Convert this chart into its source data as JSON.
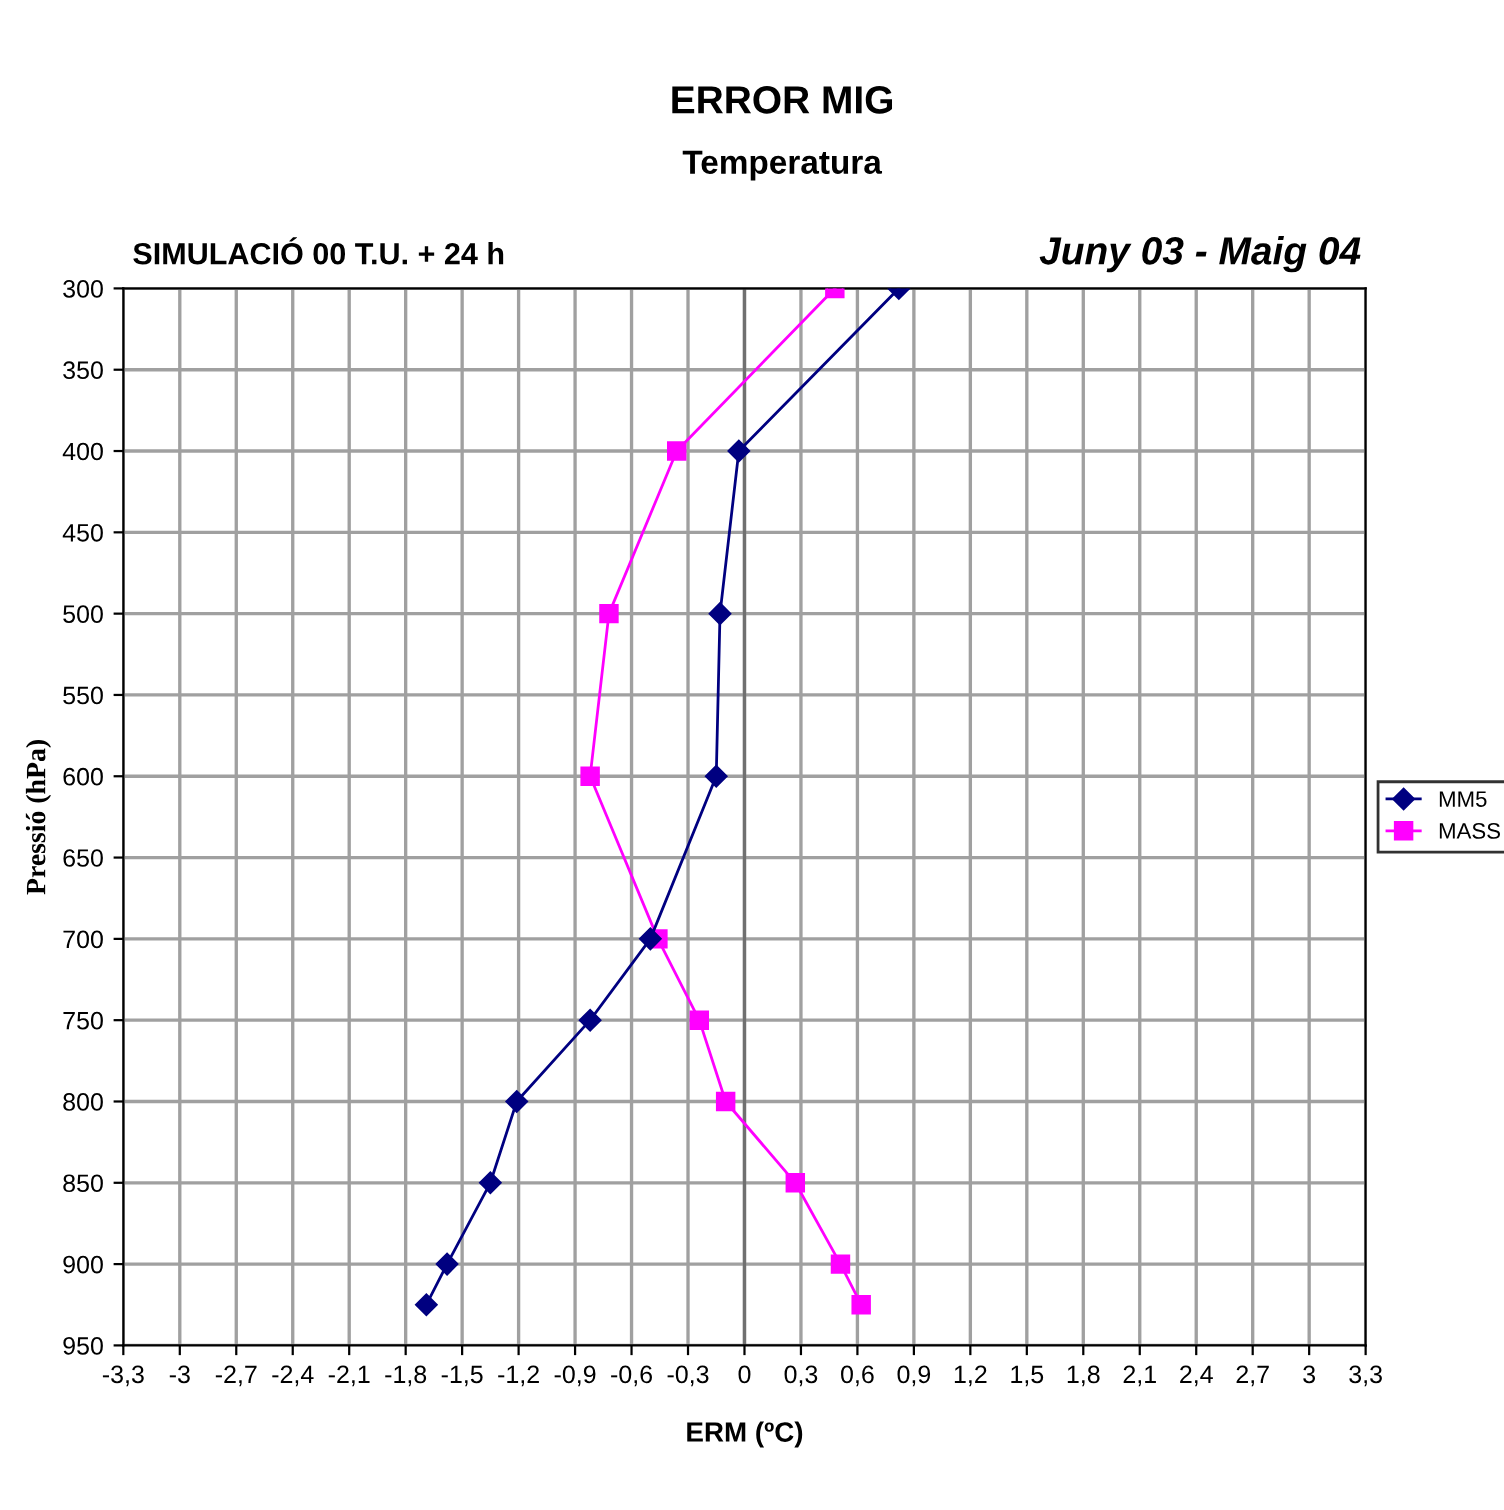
{
  "chart_data": {
    "type": "line",
    "title": "ERROR MIG",
    "subtitle": "Temperatura",
    "xlabel": "ERM (ºC)",
    "ylabel": "Pressió (hPa)",
    "annotations": [
      "SIMULACIÓ 00 T.U. + 24 h",
      "Juny 03 - Maig 04"
    ],
    "series": [
      {
        "name": "MM5",
        "color": "#000080",
        "marker": "diamond",
        "x": [
          0.82,
          -0.03,
          -0.13,
          -0.15,
          -0.5,
          -0.82,
          -1.21,
          -1.35,
          -1.58,
          -1.69
        ],
        "values": [
          300,
          400,
          500,
          600,
          700,
          750,
          800,
          850,
          900,
          925
        ]
      },
      {
        "name": "MASS",
        "color": "#ff00ff",
        "marker": "square",
        "x": [
          0.48,
          -0.36,
          -0.72,
          -0.82,
          -0.46,
          -0.24,
          -0.1,
          0.27,
          0.51,
          0.62
        ],
        "values": [
          300,
          400,
          500,
          600,
          700,
          750,
          800,
          850,
          900,
          925
        ]
      }
    ],
    "xlim": [
      -3.3,
      3.3
    ],
    "xticks": [
      {
        "value": -3.3,
        "label": "-3,3"
      },
      {
        "value": -3,
        "label": "-3"
      },
      {
        "value": -2.7,
        "label": "-2,7"
      },
      {
        "value": -2.4,
        "label": "-2,4"
      },
      {
        "value": -2.1,
        "label": "-2,1"
      },
      {
        "value": -1.8,
        "label": "-1,8"
      },
      {
        "value": -1.5,
        "label": "-1,5"
      },
      {
        "value": -1.2,
        "label": "-1,2"
      },
      {
        "value": -0.9,
        "label": "-0,9"
      },
      {
        "value": -0.6,
        "label": "-0,6"
      },
      {
        "value": -0.3,
        "label": "-0,3"
      },
      0,
      {
        "value": 0.3,
        "label": "0,3"
      },
      {
        "value": 0.6,
        "label": "0,6"
      },
      {
        "value": 0.9,
        "label": "0,9"
      },
      {
        "value": 1.2,
        "label": "1,2"
      },
      {
        "value": 1.5,
        "label": "1,5"
      },
      {
        "value": 1.8,
        "label": "1,8"
      },
      {
        "value": 2.1,
        "label": "2,1"
      },
      {
        "value": 2.4,
        "label": "2,4"
      },
      {
        "value": 2.7,
        "label": "2,7"
      },
      3,
      {
        "value": 3.3,
        "label": "3,3"
      }
    ],
    "ylim": [
      950,
      300
    ],
    "yticks": [
      300,
      350,
      400,
      450,
      500,
      550,
      600,
      650,
      700,
      750,
      800,
      850,
      900,
      950
    ],
    "grid": true,
    "legend": "right",
    "line_style": "solid"
  }
}
